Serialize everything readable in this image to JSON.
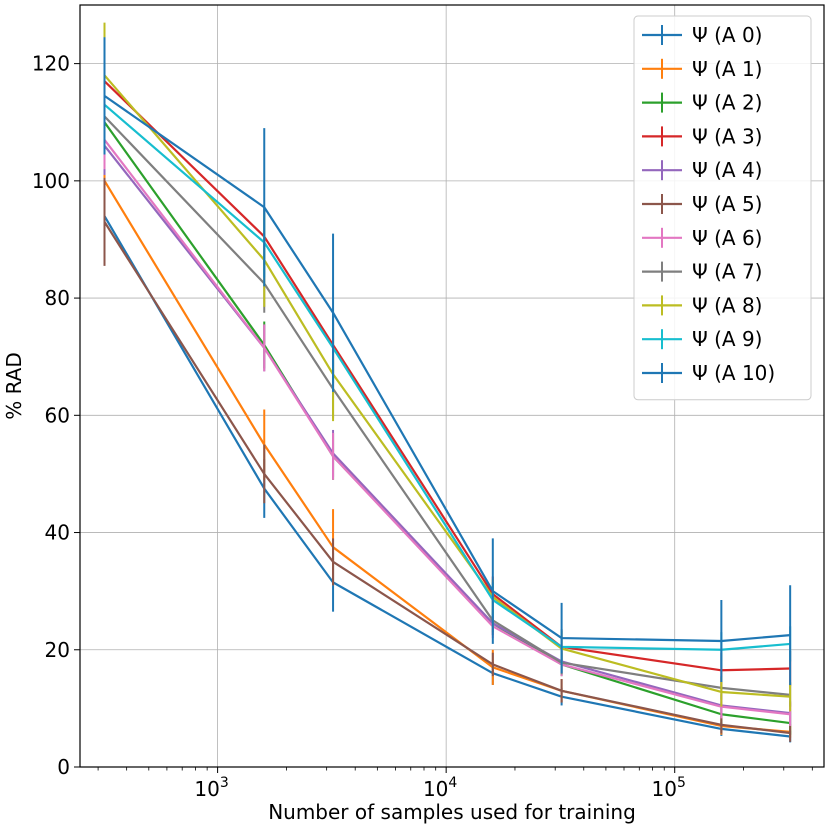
{
  "chart_data": {
    "type": "line",
    "title": "",
    "xlabel": "Number of samples used for training",
    "ylabel": "% RAD",
    "xscale": "log",
    "xlim": [
      250,
      450000
    ],
    "ylim": [
      0,
      130
    ],
    "grid": true,
    "legend_position": "top-right",
    "x": [
      320,
      1600,
      3200,
      16000,
      32000,
      160000,
      320000
    ],
    "x_ticks": [
      {
        "value": 1000,
        "base": "10",
        "exp": "3"
      },
      {
        "value": 10000,
        "base": "10",
        "exp": "4"
      },
      {
        "value": 100000,
        "base": "10",
        "exp": "5"
      }
    ],
    "y_ticks": [
      0,
      20,
      40,
      60,
      80,
      100,
      120
    ],
    "series": [
      {
        "name": "Ψ (A 0)",
        "color": "#1f77b4",
        "values": [
          94,
          47.5,
          31.5,
          16,
          12,
          6.5,
          5.2
        ],
        "errors": [
          7,
          5,
          5,
          2,
          1.5,
          1.2,
          1
        ]
      },
      {
        "name": "Ψ (A 1)",
        "color": "#ff7f0e",
        "values": [
          100,
          55,
          37.5,
          17,
          13,
          7,
          6
        ],
        "errors": [
          6,
          6,
          6.5,
          3,
          2,
          1.5,
          1
        ]
      },
      {
        "name": "Ψ (A 2)",
        "color": "#2ca02c",
        "values": [
          110,
          72,
          53,
          24.5,
          17.5,
          9,
          7.5
        ],
        "errors": [
          6,
          4,
          4,
          2,
          2,
          2,
          2
        ]
      },
      {
        "name": "Ψ (A 3)",
        "color": "#d62728",
        "values": [
          117,
          90.5,
          72,
          29.5,
          20.5,
          16.5,
          16.8
        ],
        "errors": [
          5,
          5,
          5,
          3,
          3,
          3,
          3
        ]
      },
      {
        "name": "Ψ (A 4)",
        "color": "#9467bd",
        "values": [
          106,
          71.5,
          53.5,
          24.5,
          18,
          10.5,
          9.2
        ],
        "errors": [
          5,
          4,
          4,
          2,
          2,
          2,
          2
        ]
      },
      {
        "name": "Ψ (A 5)",
        "color": "#8c564b",
        "values": [
          93,
          50,
          35,
          17.5,
          13,
          7.2,
          5.8
        ],
        "errors": [
          7.5,
          5,
          4,
          2,
          2,
          1.5,
          1.5
        ]
      },
      {
        "name": "Ψ (A 6)",
        "color": "#e377c2",
        "values": [
          107,
          71.5,
          53,
          24,
          17.5,
          10.3,
          9
        ],
        "errors": [
          5,
          4,
          4,
          2,
          2,
          2,
          2
        ]
      },
      {
        "name": "Ψ (A 7)",
        "color": "#7f7f7f",
        "values": [
          111,
          82.5,
          64.5,
          25,
          17.8,
          13.5,
          12.3
        ],
        "errors": [
          5,
          5,
          5,
          2,
          2,
          2,
          2
        ]
      },
      {
        "name": "Ψ (A 8)",
        "color": "#bcbd22",
        "values": [
          118,
          86.5,
          67,
          29,
          20.2,
          12.8,
          12
        ],
        "errors": [
          9,
          8,
          8,
          3,
          3,
          2.5,
          2.5
        ]
      },
      {
        "name": "Ψ (A 9)",
        "color": "#17becf",
        "values": [
          113,
          89.5,
          71.5,
          28.5,
          20.5,
          20,
          21
        ],
        "errors": [
          8,
          6,
          6,
          3,
          3,
          3,
          3
        ]
      },
      {
        "name": "Ψ (A 10)",
        "color": "#1f77b4",
        "values": [
          114.5,
          95.5,
          77.5,
          30,
          22,
          21.5,
          22.5
        ],
        "errors": [
          10,
          13.5,
          13.5,
          9,
          6,
          7,
          8.5
        ]
      }
    ]
  }
}
